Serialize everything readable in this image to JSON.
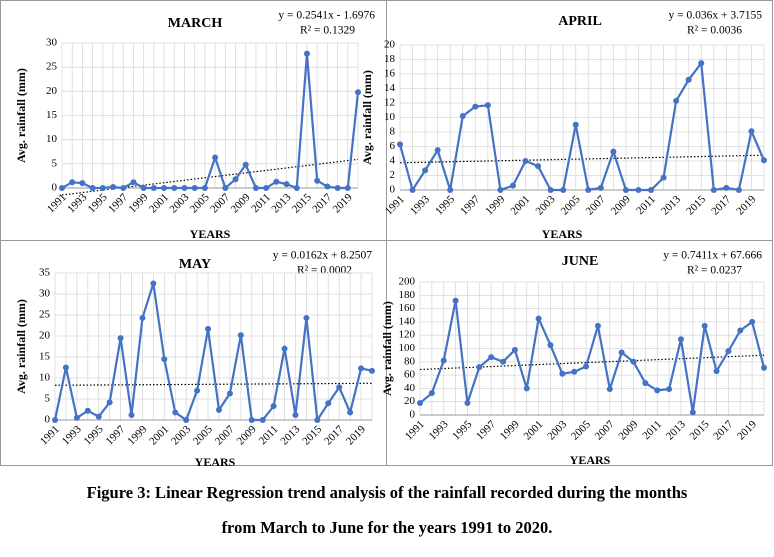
{
  "chart_data": [
    {
      "type": "line",
      "title": "MARCH",
      "equation": "y = 0.2541x - 1.6976",
      "r2_label": "R² = 0.1329",
      "ylabel": "Avg. rainfall (mm)",
      "xlabel": "YEARS",
      "categories": [
        "1991",
        null,
        "1993",
        null,
        "1995",
        null,
        "1997",
        null,
        "1999",
        null,
        "2001",
        null,
        "2003",
        null,
        "2005",
        null,
        "2007",
        null,
        "2009",
        null,
        "2011",
        null,
        "2013",
        null,
        "2015",
        null,
        "2017",
        null,
        "2019",
        null
      ],
      "series": [
        {
          "name": "MARCH",
          "color": "#4472c4",
          "values": [
            0,
            1.2,
            1,
            0,
            0,
            0.2,
            0,
            1.2,
            0,
            0,
            0,
            0,
            0,
            0,
            0,
            6.3,
            0,
            1.8,
            4.8,
            0,
            0,
            1.3,
            0.8,
            0,
            27.8,
            1.5,
            0.3,
            0,
            0,
            19.8
          ]
        }
      ],
      "trendline": {
        "slope": 0.2541,
        "intercept": -1.6976
      },
      "ylim": [
        0,
        30
      ],
      "yticks": [
        0,
        5,
        10,
        15,
        20,
        25,
        30
      ],
      "grid": true
    },
    {
      "type": "line",
      "title": "APRIL",
      "equation": "y = 0.036x + 3.7155",
      "r2_label": "R² = 0.0036",
      "ylabel": "Avg. rainfall (mm)",
      "xlabel": "YEARS",
      "categories": [
        "1991",
        null,
        "1993",
        null,
        "1995",
        null,
        "1997",
        null,
        "1999",
        null,
        "2001",
        null,
        "2003",
        null,
        "2005",
        null,
        "2007",
        null,
        "2009",
        null,
        "2011",
        null,
        "2013",
        null,
        "2015",
        null,
        "2017",
        null,
        "2019",
        null
      ],
      "series": [
        {
          "name": "APRIL",
          "color": "#4472c4",
          "values": [
            6.3,
            0,
            2.7,
            5.5,
            0,
            10.2,
            11.5,
            11.7,
            0,
            0.6,
            4,
            3.3,
            0,
            0,
            9,
            0,
            0.3,
            5.3,
            0,
            0,
            0,
            1.7,
            12.3,
            15.2,
            17.5,
            0,
            0.3,
            0,
            8.1,
            4.1
          ]
        }
      ],
      "trendline": {
        "slope": 0.036,
        "intercept": 3.7155
      },
      "ylim": [
        0,
        20
      ],
      "yticks": [
        0,
        2,
        4,
        6,
        8,
        10,
        12,
        14,
        16,
        18,
        20
      ],
      "grid": true
    },
    {
      "type": "line",
      "title": "MAY",
      "equation": "y = 0.0162x + 8.2507",
      "r2_label": "R² = 0.0002",
      "ylabel": "Avg. rainfall (mm)",
      "xlabel": "YEARS",
      "categories": [
        "1991",
        null,
        "1993",
        null,
        "1995",
        null,
        "1997",
        null,
        "1999",
        null,
        "2001",
        null,
        "2003",
        null,
        "2005",
        null,
        "2007",
        null,
        "2009",
        null,
        "2011",
        null,
        "2013",
        null,
        "2015",
        null,
        "2017",
        null,
        "2019",
        null
      ],
      "series": [
        {
          "name": "MAY",
          "color": "#4472c4",
          "values": [
            0,
            12.5,
            0.5,
            2.2,
            0.8,
            4.2,
            19.5,
            1.2,
            24.3,
            32.5,
            14.5,
            1.8,
            0,
            7,
            21.7,
            2.4,
            6.3,
            20.2,
            0,
            0,
            3.3,
            17,
            1.2,
            24.3,
            0,
            4,
            7.8,
            1.8,
            12.3,
            11.7
          ]
        }
      ],
      "trendline": {
        "slope": 0.0162,
        "intercept": 8.2507
      },
      "ylim": [
        0,
        35
      ],
      "yticks": [
        0,
        5,
        10,
        15,
        20,
        25,
        30,
        35
      ],
      "grid": true
    },
    {
      "type": "line",
      "title": "JUNE",
      "equation": "y = 0.7411x + 67.666",
      "r2_label": "R² = 0.0237",
      "ylabel": "Avg. rainfall (mm)",
      "xlabel": "YEARS",
      "categories": [
        "1991",
        null,
        "1993",
        null,
        "1995",
        null,
        "1997",
        null,
        "1999",
        null,
        "2001",
        null,
        "2003",
        null,
        "2005",
        null,
        "2007",
        null,
        "2009",
        null,
        "2011",
        null,
        "2013",
        null,
        "2015",
        null,
        "2017",
        null,
        "2019",
        null
      ],
      "series": [
        {
          "name": "JUNE",
          "color": "#4472c4",
          "values": [
            18,
            33,
            82,
            172,
            18,
            72,
            87,
            80,
            98,
            40,
            145,
            105,
            62,
            65,
            73,
            134,
            39,
            94,
            80,
            48,
            37,
            39,
            114,
            4,
            134,
            66,
            96,
            127,
            140,
            71
          ]
        }
      ],
      "trendline": {
        "slope": 0.7411,
        "intercept": 67.666
      },
      "ylim": [
        0,
        200
      ],
      "yticks": [
        0,
        20,
        40,
        60,
        80,
        100,
        120,
        140,
        160,
        180,
        200
      ],
      "grid": true
    }
  ],
  "caption": {
    "line1": "Figure 3: Linear Regression trend analysis of the rainfall recorded during the months",
    "line2": "from March to June for the years 1991 to 2020."
  }
}
